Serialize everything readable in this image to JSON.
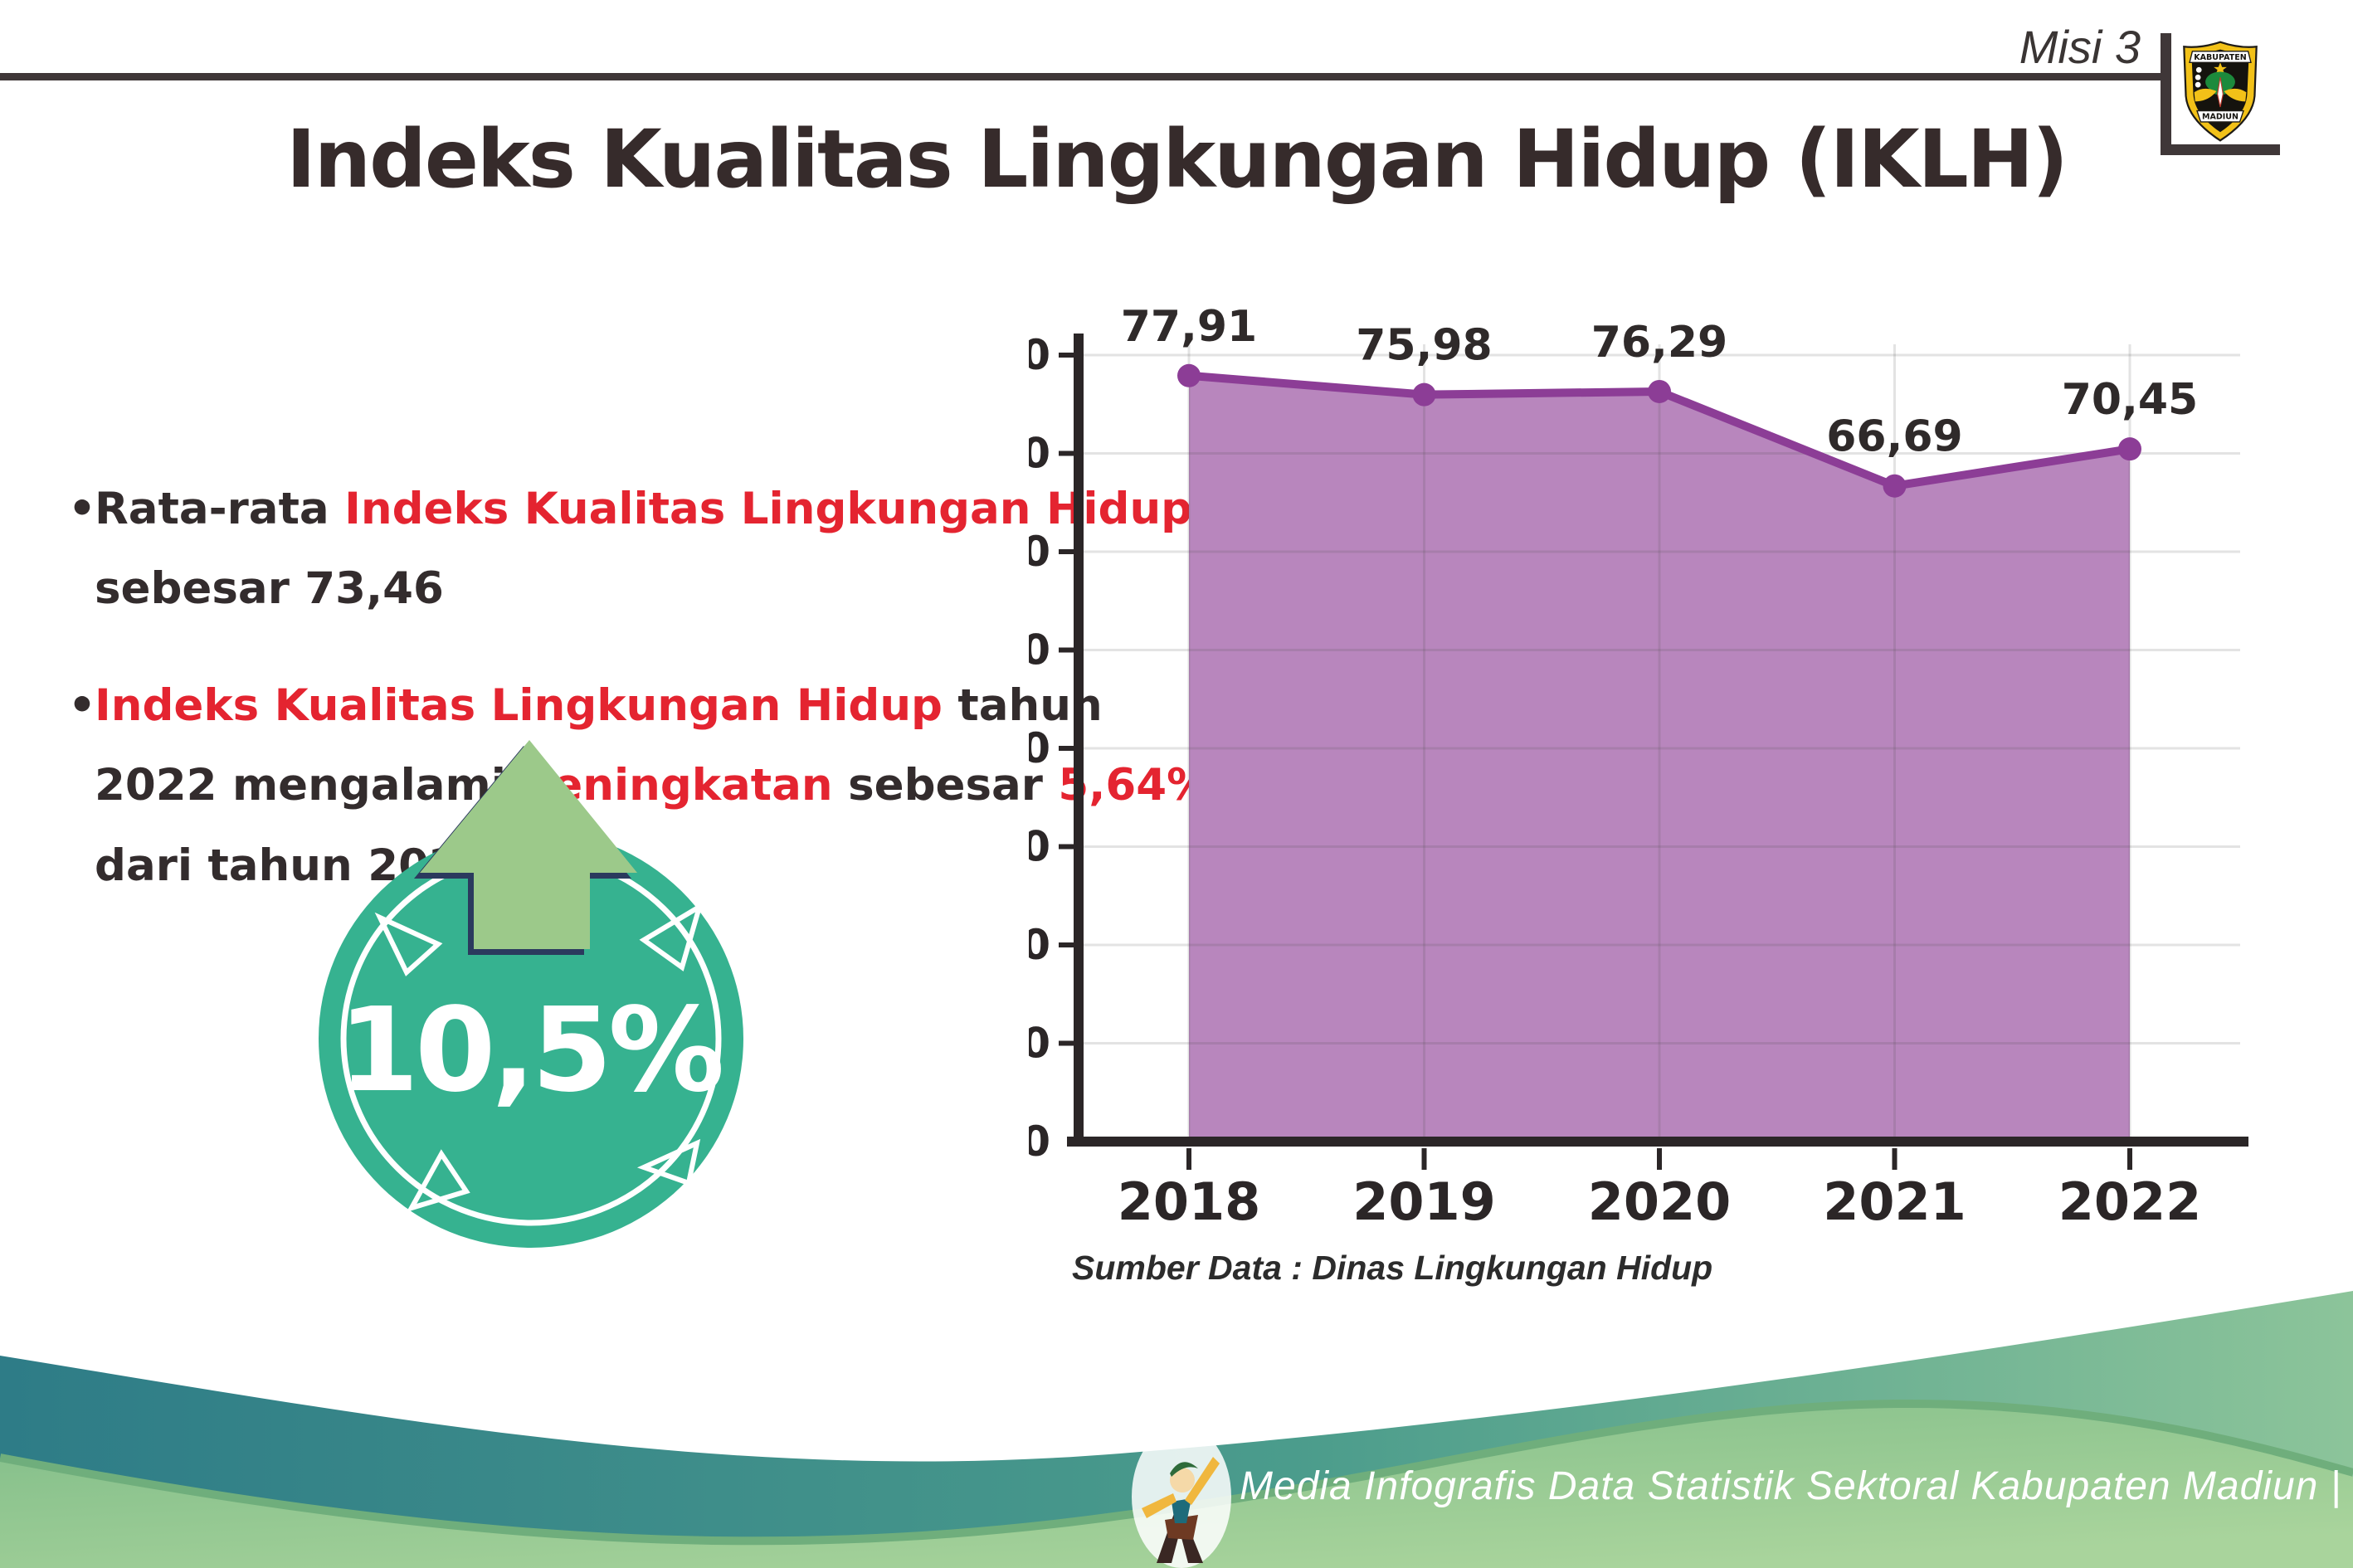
{
  "header": {
    "misi_label": "Misi 3",
    "logo_top": "KABUPATEN",
    "logo_bottom": "MADIUN"
  },
  "title": "Indeks Kualitas Lingkungan Hidup (IKLH)",
  "bullets": {
    "b1": {
      "s1": "Rata-rata ",
      "s2": "Indeks Kualitas Lingkungan Hidup",
      "s3": " sebesar 73,46"
    },
    "b2": {
      "s1": "Indeks Kualitas Lingkungan Hidup",
      "s2": " tahun 2022 mengalami ",
      "s3": "peningkatan",
      "s4": " sebesar ",
      "s5": "5,64%",
      "s6": " dari tahun 2021"
    }
  },
  "badge": {
    "value_label": "10,5%",
    "direction": "up"
  },
  "chart_data": {
    "type": "area",
    "categories": [
      "2018",
      "2019",
      "2020",
      "2021",
      "2022"
    ],
    "values": [
      77.91,
      75.98,
      76.29,
      66.69,
      70.45
    ],
    "value_labels": [
      "77,91",
      "75,98",
      "76,29",
      "66,69",
      "70,45"
    ],
    "title": "",
    "xlabel": "",
    "ylabel": "",
    "ylim": [
      0,
      80
    ],
    "ytick_step": 10,
    "grid": true,
    "legend": "none",
    "line_color": "#8c3d96",
    "marker_color": "#8c3d96",
    "fill_color": "#b886bd",
    "axis_color": "#2b2627",
    "label_color": "#2f2a2a",
    "source_note": "Sumber Data : Dinas Lingkungan Hidup"
  },
  "footer": {
    "credit": "Media Infografis Data Statistik Sektoral Kabupaten Madiun |"
  },
  "colors": {
    "accent_red": "#e42430",
    "text_dark": "#332c2d",
    "badge_teal": "#36b290",
    "arrow_green": "#9cc98a",
    "arrow_outline": "#2b3a5e",
    "footer_teal": "#2e7c87",
    "footer_green": "#8ec893"
  }
}
